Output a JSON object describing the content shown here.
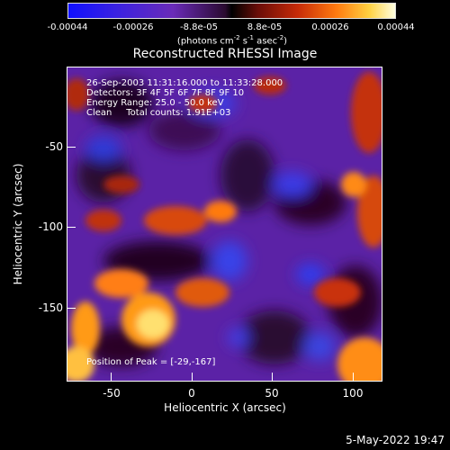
{
  "colorbar": {
    "ticks": [
      "-0.00044",
      "-0.00026",
      "-8.8e-05",
      "8.8e-05",
      "0.00026",
      "0.00044"
    ],
    "unit_prefix": "(photons cm",
    "unit_sup1": "-2",
    "unit_mid": " s",
    "unit_sup2": "-1",
    "unit_mid2": " asec",
    "unit_sup3": "-2",
    "unit_suffix": ")"
  },
  "plot": {
    "title": "Reconstructed RHESSI Image",
    "xlabel": "Heliocentric X (arcsec)",
    "ylabel": "Heliocentric Y (arcsec)",
    "xticks": [
      "-50",
      "0",
      "50",
      "100"
    ],
    "yticks": [
      "-50",
      "-100",
      "-150"
    ],
    "info_lines": [
      "26-Sep-2003 11:31:16.000 to 11:33:28.000",
      "Detectors: 3F 4F 5F 6F 7F 8F 9F 10",
      "Energy Range: 25.0 - 50.0 keV",
      "Clean     Total counts: 1.91E+03"
    ],
    "peak_text": "Position of Peak = [-29,-167]"
  },
  "footer": {
    "timestamp": "5-May-2022 19:47"
  },
  "colors": {
    "background": "#000000",
    "text": "#ffffff"
  }
}
